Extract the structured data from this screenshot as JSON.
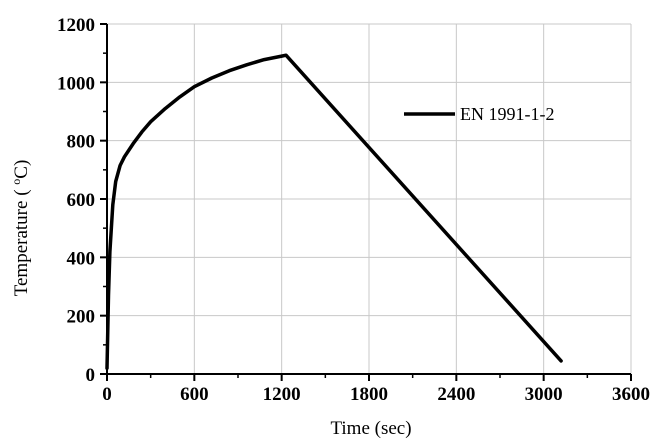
{
  "chart_data": {
    "type": "line",
    "title": "",
    "xlabel": "Time (sec)",
    "ylabel": "Temperature ( oC)",
    "ylabel_parts": {
      "prefix": "Temperature ( ",
      "sup": "o",
      "suffix": "C)"
    },
    "xlim": [
      0,
      3600
    ],
    "ylim": [
      0,
      1200
    ],
    "x_ticks": [
      "0",
      "600",
      "1200",
      "1800",
      "2400",
      "3000",
      "3600"
    ],
    "y_ticks": [
      "0",
      "200",
      "400",
      "600",
      "800",
      "1000",
      "1200"
    ],
    "grid": true,
    "legend_position": "top-right",
    "series": [
      {
        "name": "EN 1991-1-2",
        "color": "#000000",
        "x": [
          0,
          10,
          20,
          40,
          60,
          90,
          120,
          180,
          240,
          300,
          400,
          500,
          600,
          720,
          840,
          960,
          1080,
          1200,
          1230,
          3120
        ],
        "y": [
          20,
          270,
          420,
          580,
          660,
          715,
          745,
          790,
          830,
          865,
          910,
          950,
          985,
          1015,
          1040,
          1060,
          1078,
          1090,
          1093,
          45
        ]
      }
    ]
  }
}
